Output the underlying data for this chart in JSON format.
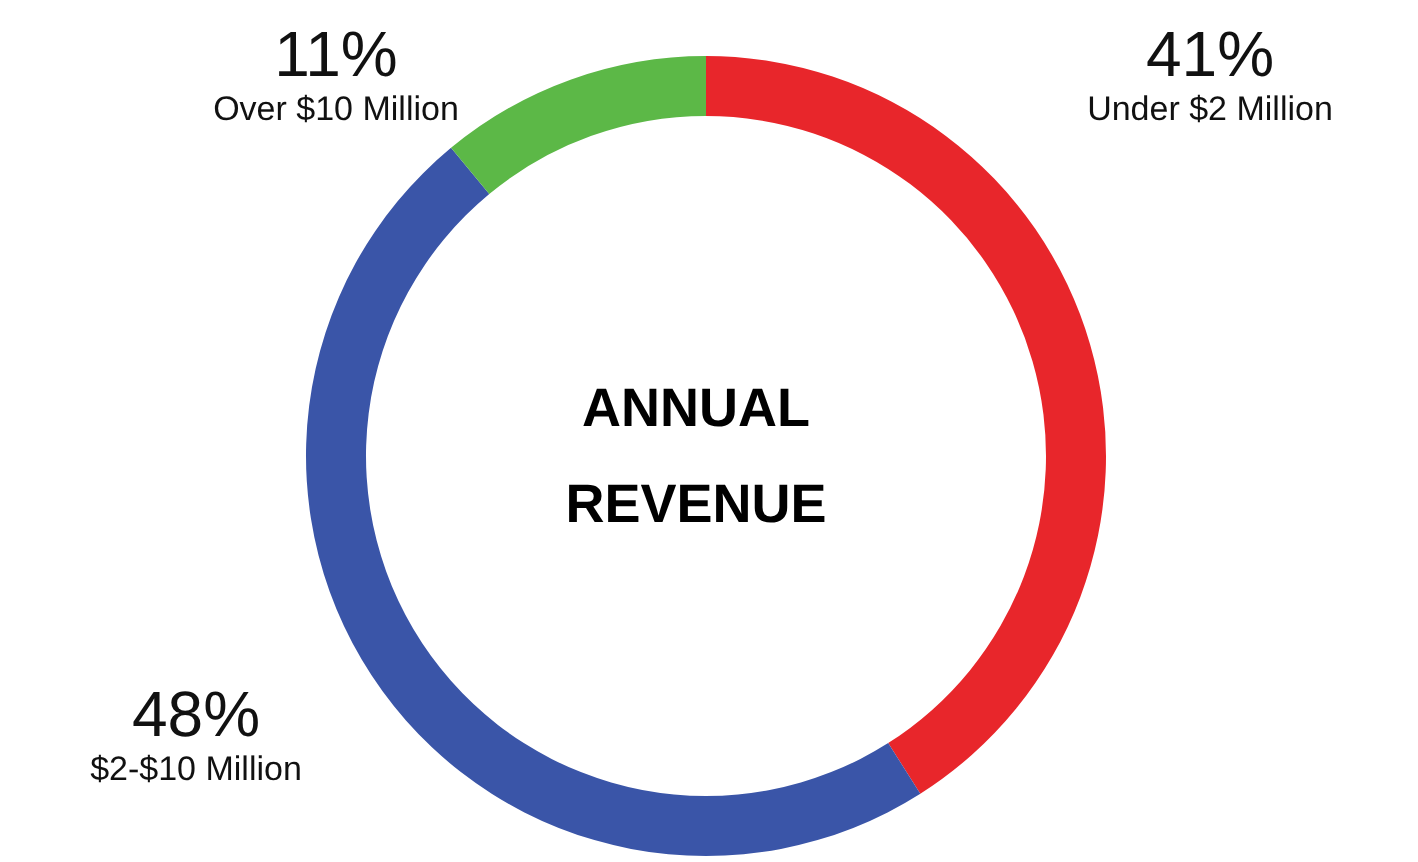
{
  "chart_data": {
    "type": "donut",
    "title": "ANNUAL REVENUE",
    "categories": [
      "Under $2 Million",
      "$2-$10 Million",
      "Over $10 Million"
    ],
    "values": [
      41,
      48,
      11
    ],
    "colors": [
      "#e8262b",
      "#3a55a8",
      "#5cb847"
    ],
    "value_labels": [
      "41%",
      "48%",
      "11%"
    ]
  }
}
